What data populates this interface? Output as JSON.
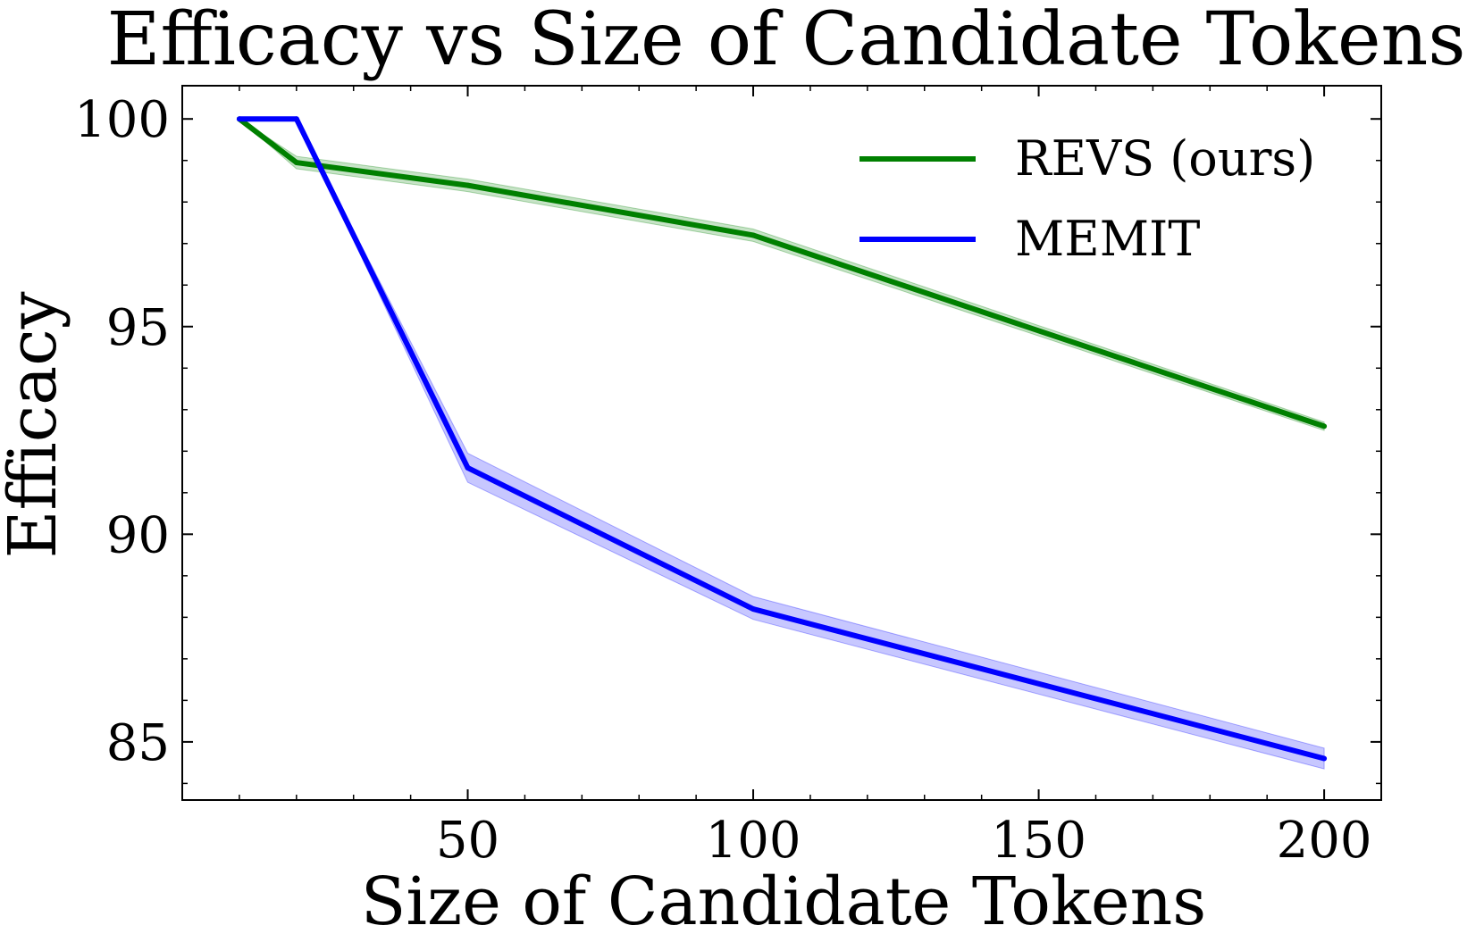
{
  "chart_data": {
    "type": "line",
    "title": "Efficacy vs Size of Candidate Tokens",
    "xlabel": "Size of Candidate Tokens",
    "ylabel": "Efficacy",
    "xlim": [
      0,
      210
    ],
    "ylim": [
      83.6,
      100.8
    ],
    "x_ticks": [
      50,
      100,
      150,
      200
    ],
    "y_ticks": [
      85,
      90,
      95,
      100
    ],
    "grid": false,
    "legend_position": "top-right",
    "series": [
      {
        "name": "REVS (ours)",
        "color": "#008000",
        "x": [
          10,
          20,
          50,
          100,
          200
        ],
        "y": [
          100.0,
          98.95,
          98.4,
          97.2,
          92.6
        ],
        "band_lower": [
          100.0,
          98.8,
          98.25,
          97.05,
          92.5
        ],
        "band_upper": [
          100.0,
          99.1,
          98.55,
          97.35,
          92.7
        ]
      },
      {
        "name": "MEMIT",
        "color": "#0000ff",
        "x": [
          10,
          20,
          50,
          100,
          200
        ],
        "y": [
          100.0,
          100.0,
          91.6,
          88.2,
          84.6
        ],
        "band_lower": [
          100.0,
          100.0,
          91.25,
          87.95,
          84.35
        ],
        "band_upper": [
          100.0,
          100.0,
          91.95,
          88.5,
          84.85
        ]
      }
    ]
  }
}
